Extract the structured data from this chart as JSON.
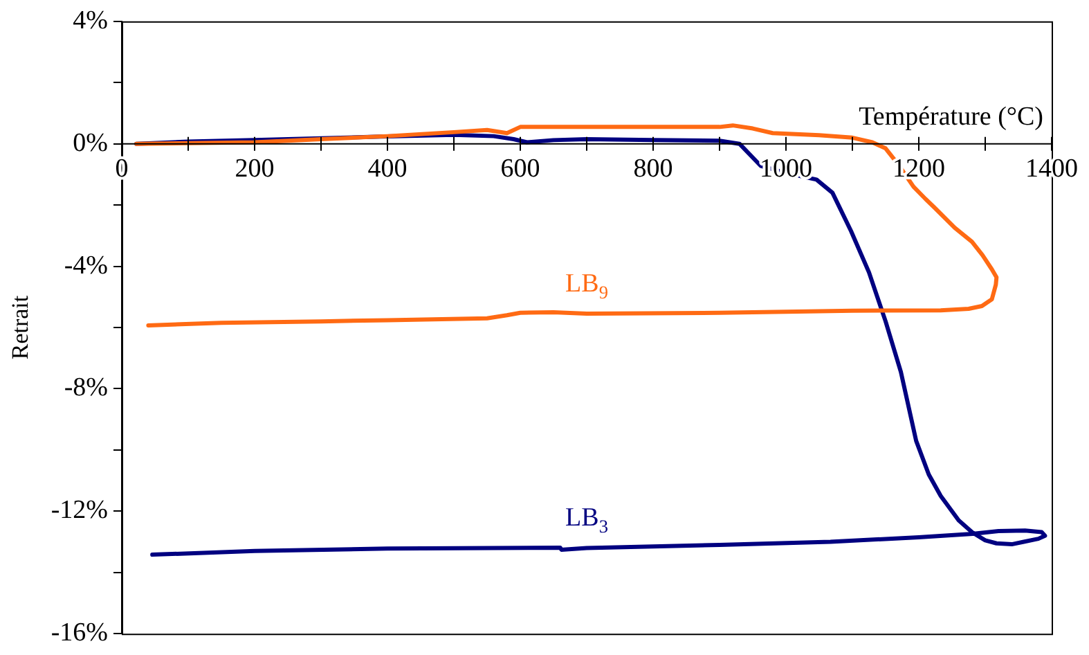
{
  "chart_data": {
    "type": "line",
    "xlabel": "Température (°C)",
    "ylabel": "Retrait",
    "xlim": [
      0,
      1400
    ],
    "ylim": [
      -16,
      4
    ],
    "xticks": [
      0,
      {
        "value": 100,
        "label": null
      },
      200,
      {
        "value": 300,
        "label": null
      },
      400,
      {
        "value": 500,
        "label": null
      },
      600,
      {
        "value": 700,
        "label": null
      },
      800,
      {
        "value": 900,
        "label": null
      },
      1000,
      {
        "value": 1100,
        "label": null
      },
      1200,
      {
        "value": 1300,
        "label": null
      },
      1400
    ],
    "yticks": [
      {
        "value": -16,
        "label": "-16%"
      },
      {
        "value": -14,
        "label": null
      },
      {
        "value": -12,
        "label": "-12%"
      },
      {
        "value": -10,
        "label": null
      },
      {
        "value": -8,
        "label": "-8%"
      },
      {
        "value": -6,
        "label": null
      },
      {
        "value": -4,
        "label": "-4%"
      },
      {
        "value": -2,
        "label": null
      },
      {
        "value": 0,
        "label": "0%"
      },
      {
        "value": 2,
        "label": null
      },
      {
        "value": 4,
        "label": "4%"
      }
    ],
    "grid": false,
    "legend": false,
    "marker": "none",
    "line_style": "solid",
    "series": [
      {
        "name": "LB$_{9}$",
        "color": "#ff6a13",
        "x": [
          22,
          100,
          200,
          300,
          400,
          500,
          550,
          580,
          600,
          700,
          800,
          900,
          920,
          950,
          980,
          1050,
          1100,
          1130,
          1150,
          1170,
          1192,
          1210,
          1223,
          1254,
          1280,
          1296,
          1310,
          1317,
          1316,
          1310,
          1295,
          1275,
          1233,
          1100,
          900,
          700,
          650,
          600,
          580,
          550,
          400,
          300,
          150,
          40
        ],
        "values": [
          0,
          0.02,
          0.05,
          0.15,
          0.25,
          0.38,
          0.45,
          0.35,
          0.55,
          0.55,
          0.55,
          0.55,
          0.6,
          0.5,
          0.35,
          0.28,
          0.2,
          0.05,
          -0.15,
          -0.7,
          -1.4,
          -1.8,
          -2.07,
          -2.74,
          -3.2,
          -3.64,
          -4.1,
          -4.36,
          -4.6,
          -5.08,
          -5.3,
          -5.39,
          -5.44,
          -5.45,
          -5.52,
          -5.55,
          -5.5,
          -5.52,
          -5.6,
          -5.7,
          -5.76,
          -5.8,
          -5.85,
          -5.93
        ]
      },
      {
        "name": "LB$_{3}$",
        "color": "#000080",
        "x": [
          22,
          100,
          200,
          300,
          400,
          500,
          560,
          590,
          610,
          650,
          700,
          800,
          900,
          930,
          962,
          1000,
          1046,
          1070,
          1098,
          1125,
          1150,
          1173,
          1196,
          1215,
          1233,
          1260,
          1281,
          1300,
          1317,
          1340,
          1358,
          1380,
          1390,
          1385,
          1360,
          1320,
          1281,
          1200,
          1067,
          900,
          700,
          662,
          660,
          400,
          200,
          46
        ],
        "values": [
          0,
          0.07,
          0.12,
          0.18,
          0.24,
          0.29,
          0.25,
          0.15,
          0.05,
          0.12,
          0.15,
          0.12,
          0.1,
          0,
          -0.72,
          -0.95,
          -1.17,
          -1.6,
          -2.85,
          -4.2,
          -5.8,
          -7.45,
          -9.7,
          -10.8,
          -11.5,
          -12.3,
          -12.7,
          -12.95,
          -13.05,
          -13.08,
          -13.0,
          -12.9,
          -12.8,
          -12.68,
          -12.63,
          -12.65,
          -12.74,
          -12.85,
          -13.0,
          -13.1,
          -13.2,
          -13.26,
          -13.19,
          -13.22,
          -13.3,
          -13.42
        ]
      }
    ]
  }
}
